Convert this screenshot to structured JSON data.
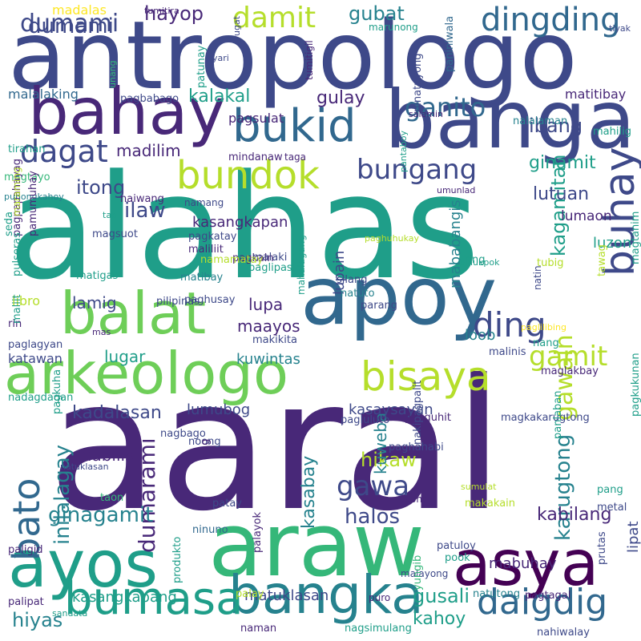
{
  "palette": {
    "dark_purple": "#440154",
    "indigo": "#482878",
    "navy": "#3e4989",
    "blue": "#31688e",
    "teal": "#26828e",
    "green_teal": "#1f9e89",
    "green": "#35b779",
    "light_green": "#6ece58",
    "lime": "#b5de2b",
    "yellow": "#fde725",
    "background": "#ffffff"
  },
  "words": [
    {
      "text": "alahas",
      "color": "green_teal"
    },
    {
      "text": "aaral",
      "color": "indigo"
    },
    {
      "text": "antropologo",
      "color": "navy"
    },
    {
      "text": "apoy",
      "color": "blue"
    },
    {
      "text": "banga",
      "color": "navy"
    },
    {
      "text": "bahay",
      "color": "indigo"
    },
    {
      "text": "araw",
      "color": "green"
    },
    {
      "text": "arkeologo",
      "color": "light_green"
    },
    {
      "text": "asya",
      "color": "dark_purple"
    },
    {
      "text": "ayos",
      "color": "green_teal"
    },
    {
      "text": "balat",
      "color": "light_green"
    },
    {
      "text": "bangka",
      "color": "teal"
    },
    {
      "text": "bato",
      "color": "blue"
    },
    {
      "text": "buhay",
      "color": "navy"
    },
    {
      "text": "bukid",
      "color": "blue"
    },
    {
      "text": "bumasa",
      "color": "green_teal"
    },
    {
      "text": "bundok",
      "color": "lime"
    },
    {
      "text": "bisaya",
      "color": "lime"
    },
    {
      "text": "daigdig",
      "color": "blue"
    },
    {
      "text": "dingding",
      "color": "blue"
    },
    {
      "text": "damit",
      "color": "lime"
    },
    {
      "text": "dumami",
      "color": "navy"
    },
    {
      "text": "ganito",
      "color": "blue"
    },
    {
      "text": "dagat",
      "color": "navy"
    },
    {
      "text": "bungang",
      "color": "navy"
    },
    {
      "text": "ding",
      "color": "navy"
    },
    {
      "text": "gamit",
      "color": "lime"
    },
    {
      "text": "gawa",
      "color": "navy"
    },
    {
      "text": "dumarami",
      "color": "indigo"
    },
    {
      "text": "inilalagay",
      "color": "teal"
    },
    {
      "text": "gawain",
      "color": "lime"
    },
    {
      "text": "karugtong",
      "color": "teal"
    },
    {
      "text": "kabilang",
      "color": "indigo"
    },
    {
      "text": "ginagamit",
      "color": "teal"
    },
    {
      "text": "kadalasan",
      "color": "navy"
    },
    {
      "text": "halos",
      "color": "navy"
    },
    {
      "text": "hikaw",
      "color": "lime"
    },
    {
      "text": "hiyas",
      "color": "teal"
    },
    {
      "text": "gusali",
      "color": "green_teal"
    },
    {
      "text": "kahoy",
      "color": "green_teal"
    },
    {
      "text": "kasabay",
      "color": "teal"
    },
    {
      "text": "kuweba",
      "color": "teal"
    },
    {
      "text": "kasangkapang",
      "color": "green_teal"
    },
    {
      "text": "kasaysayan",
      "color": "navy"
    },
    {
      "text": "kagamitan",
      "color": "green_teal"
    },
    {
      "text": "ginamit",
      "color": "green_teal"
    },
    {
      "text": "ibang",
      "color": "navy"
    },
    {
      "text": "lutuan",
      "color": "navy"
    },
    {
      "text": "lumaon",
      "color": "indigo"
    },
    {
      "text": "luzon",
      "color": "green_teal"
    },
    {
      "text": "itong",
      "color": "navy"
    },
    {
      "text": "ilaw",
      "color": "navy"
    },
    {
      "text": "kalakal",
      "color": "green_teal"
    },
    {
      "text": "gulay",
      "color": "indigo"
    },
    {
      "text": "hayop",
      "color": "indigo"
    },
    {
      "text": "gubat",
      "color": "teal"
    },
    {
      "text": "madilim",
      "color": "indigo"
    },
    {
      "text": "kasangkapan",
      "color": "indigo"
    },
    {
      "text": "lupain",
      "color": "navy"
    },
    {
      "text": "lupa",
      "color": "indigo"
    },
    {
      "text": "lamig",
      "color": "navy"
    },
    {
      "text": "libro",
      "color": "lime"
    },
    {
      "text": "maayos",
      "color": "indigo"
    },
    {
      "text": "lugar",
      "color": "green_teal"
    },
    {
      "text": "kuwintas",
      "color": "teal"
    },
    {
      "text": "katawan",
      "color": "navy"
    },
    {
      "text": "lumubog",
      "color": "navy"
    },
    {
      "text": "mababangis",
      "color": "teal"
    },
    {
      "text": "loob",
      "color": "teal"
    },
    {
      "text": "mabilis",
      "color": "indigo"
    },
    {
      "text": "mabuhay",
      "color": "indigo"
    },
    {
      "text": "lipat",
      "color": "navy"
    },
    {
      "text": "matuklasan",
      "color": "navy"
    },
    {
      "text": "madalas",
      "color": "yellow"
    },
    {
      "text": "dumami",
      "color": "navy"
    },
    {
      "text": "malalaking",
      "color": "blue"
    },
    {
      "text": "pagbabago",
      "color": "navy"
    },
    {
      "text": "pagsulat",
      "color": "indigo"
    },
    {
      "text": "matitibay",
      "color": "indigo"
    },
    {
      "text": "mahilig",
      "color": "green_teal"
    },
    {
      "text": "nalalaman",
      "color": "teal"
    },
    {
      "text": "mindanaw",
      "color": "indigo"
    },
    {
      "text": "taga",
      "color": "indigo"
    },
    {
      "text": "tirahan",
      "color": "green_teal"
    },
    {
      "text": "magtayo",
      "color": "green"
    },
    {
      "text": "punongkahoy",
      "color": "teal"
    },
    {
      "text": "pagpapahayag",
      "color": "indigo"
    },
    {
      "text": "pamumuhay",
      "color": "indigo"
    },
    {
      "text": "pulseras",
      "color": "green_teal"
    },
    {
      "text": "paniniwala",
      "color": "blue"
    },
    {
      "text": "pinatuyong",
      "color": "navy"
    },
    {
      "text": "marunong",
      "color": "green_teal"
    },
    {
      "text": "tumitira",
      "color": "indigo"
    },
    {
      "text": "ugat",
      "color": "navy"
    },
    {
      "text": "tiyak",
      "color": "navy"
    },
    {
      "text": "yari",
      "color": "navy"
    },
    {
      "text": "patunay",
      "color": "green_teal"
    },
    {
      "text": "tumitigil",
      "color": "indigo"
    },
    {
      "text": "unang",
      "color": "green"
    },
    {
      "text": "salamin",
      "color": "indigo"
    },
    {
      "text": "pantaboy",
      "color": "green_teal"
    },
    {
      "text": "umunlad",
      "color": "indigo"
    },
    {
      "text": "namang",
      "color": "navy"
    },
    {
      "text": "naiwang",
      "color": "indigo"
    },
    {
      "text": "pagkatay",
      "color": "navy"
    },
    {
      "text": "tao",
      "color": "green_teal"
    },
    {
      "text": "magsuot",
      "color": "navy"
    },
    {
      "text": "maliliit",
      "color": "indigo"
    },
    {
      "text": "maraming",
      "color": "lime"
    },
    {
      "text": "seda",
      "color": "green_teal"
    },
    {
      "text": "paghuhukay",
      "color": "lime"
    },
    {
      "text": "ring",
      "color": "green_teal"
    },
    {
      "text": "pagkain",
      "color": "indigo"
    },
    {
      "text": "malaki",
      "color": "navy"
    },
    {
      "text": "silang",
      "color": "navy"
    },
    {
      "text": "natuto",
      "color": "teal"
    },
    {
      "text": "parang",
      "color": "navy"
    },
    {
      "text": "natin",
      "color": "navy"
    },
    {
      "text": "pinukpok",
      "color": "green_teal"
    },
    {
      "text": "tubig",
      "color": "lime"
    },
    {
      "text": "matigas",
      "color": "green_teal"
    },
    {
      "text": "namamatay",
      "color": "lime"
    },
    {
      "text": "matibay",
      "color": "teal"
    },
    {
      "text": "paghusay",
      "color": "navy"
    },
    {
      "text": "paglipas",
      "color": "green_teal"
    },
    {
      "text": "mas",
      "color": "indigo"
    },
    {
      "text": "tawag",
      "color": "lime"
    },
    {
      "text": "magtanim",
      "color": "green_teal"
    },
    {
      "text": "pilipinas",
      "color": "navy"
    },
    {
      "text": "mahalagang",
      "color": "green_teal"
    },
    {
      "text": "paglilibing",
      "color": "yellow"
    },
    {
      "text": "rin",
      "color": "indigo"
    },
    {
      "text": "maliit",
      "color": "green_teal"
    },
    {
      "text": "paglagyan",
      "color": "navy"
    },
    {
      "text": "makikita",
      "color": "navy"
    },
    {
      "text": "nang",
      "color": "green_teal"
    },
    {
      "text": "malinis",
      "color": "navy"
    },
    {
      "text": "maglakbay",
      "color": "indigo"
    },
    {
      "text": "nadagdagan",
      "color": "green_teal"
    },
    {
      "text": "pagkuha",
      "color": "green_teal"
    },
    {
      "text": "pagluluto",
      "color": "navy"
    },
    {
      "text": "pagguhit",
      "color": "indigo"
    },
    {
      "text": "magkakarugtong",
      "color": "navy"
    },
    {
      "text": "nagbago",
      "color": "navy"
    },
    {
      "text": "noong",
      "color": "navy"
    },
    {
      "text": "paghahabi",
      "color": "navy"
    },
    {
      "text": "nag",
      "color": "indigo"
    },
    {
      "text": "nakipagpalit",
      "color": "navy"
    },
    {
      "text": "panlaban",
      "color": "green_teal"
    },
    {
      "text": "pagkukunan",
      "color": "green_teal"
    },
    {
      "text": "natuklasan",
      "color": "navy"
    },
    {
      "text": "sumulat",
      "color": "lime"
    },
    {
      "text": "taon",
      "color": "green"
    },
    {
      "text": "patay",
      "color": "navy"
    },
    {
      "text": "taong",
      "color": "indigo"
    },
    {
      "text": "pang",
      "color": "green_teal"
    },
    {
      "text": "ninuno",
      "color": "blue"
    },
    {
      "text": "makakain",
      "color": "lime"
    },
    {
      "text": "metal",
      "color": "navy"
    },
    {
      "text": "paligid",
      "color": "indigo"
    },
    {
      "text": "patuloy",
      "color": "navy"
    },
    {
      "text": "pook",
      "color": "green_teal"
    },
    {
      "text": "palayok",
      "color": "indigo"
    },
    {
      "text": "produkto",
      "color": "green_teal"
    },
    {
      "text": "malayong",
      "color": "navy"
    },
    {
      "text": "yungib",
      "color": "green"
    },
    {
      "text": "prutas",
      "color": "navy"
    },
    {
      "text": "pagtagal",
      "color": "indigo"
    },
    {
      "text": "natutong",
      "color": "teal"
    },
    {
      "text": "palipat",
      "color": "indigo"
    },
    {
      "text": "palay",
      "color": "lime"
    },
    {
      "text": "puro",
      "color": "indigo"
    },
    {
      "text": "sandata",
      "color": "green_teal"
    },
    {
      "text": "naman",
      "color": "indigo"
    },
    {
      "text": "nagsimulang",
      "color": "green_teal"
    },
    {
      "text": "nahiwalay",
      "color": "navy"
    },
    {
      "text": "sinusulatan",
      "color": "teal"
    }
  ]
}
